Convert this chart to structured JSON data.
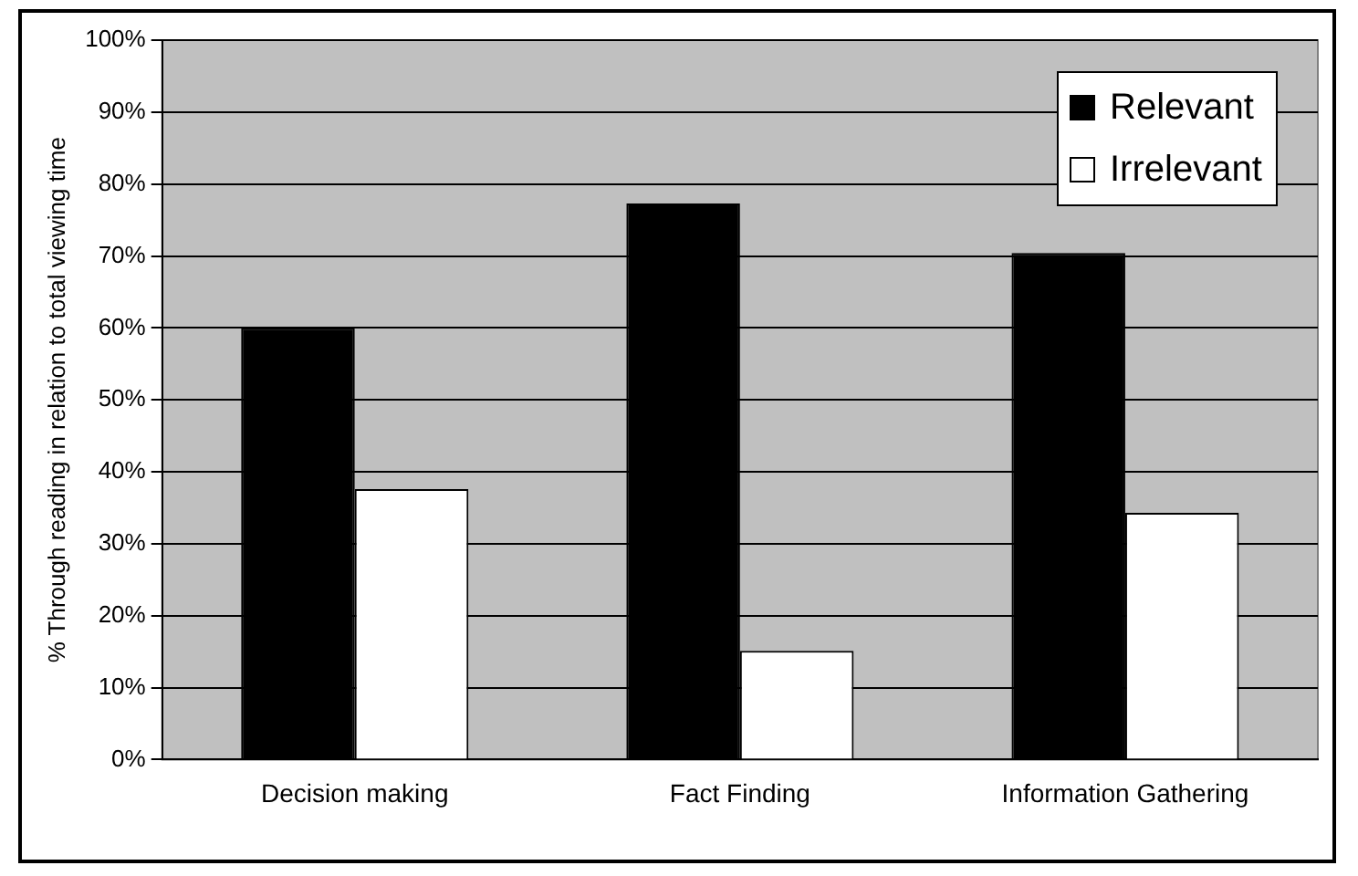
{
  "chart_data": {
    "type": "bar",
    "ylabel": "% Through reading in relation to total viewing time",
    "categories": [
      "Decision making",
      "Fact Finding",
      "Information Gathering"
    ],
    "series": [
      {
        "name": "Relevant",
        "color": "#000000",
        "values": [
          60,
          77.3,
          70.4
        ]
      },
      {
        "name": "Irrelevant",
        "color": "#ffffff",
        "values": [
          37.6,
          15.1,
          34.3
        ]
      }
    ],
    "ylim": [
      0,
      100
    ],
    "yticks": [
      {
        "value": 0,
        "label": "0%"
      },
      {
        "value": 10,
        "label": "10%"
      },
      {
        "value": 20,
        "label": "20%"
      },
      {
        "value": 30,
        "label": "30%"
      },
      {
        "value": 40,
        "label": "40%"
      },
      {
        "value": 50,
        "label": "50%"
      },
      {
        "value": 60,
        "label": "60%"
      },
      {
        "value": 70,
        "label": "70%"
      },
      {
        "value": 80,
        "label": "80%"
      },
      {
        "value": 90,
        "label": "90%"
      },
      {
        "value": 100,
        "label": "100%"
      }
    ],
    "grid": "y",
    "legend": "top right"
  }
}
